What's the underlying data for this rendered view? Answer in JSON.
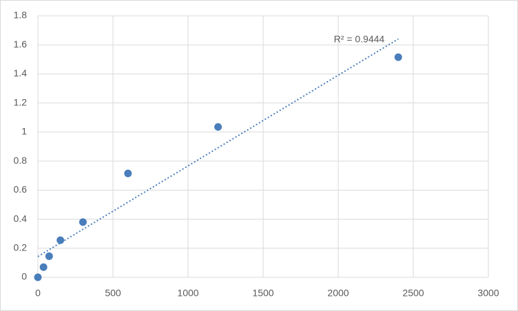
{
  "chart_data": {
    "type": "scatter",
    "x": [
      0,
      37.5,
      75,
      150,
      300,
      600,
      1200,
      2400
    ],
    "values": [
      0,
      0.07,
      0.145,
      0.255,
      0.38,
      0.715,
      1.035,
      1.515
    ],
    "color": "#4a7ebb",
    "trendline": "linear",
    "annotation": "R² = 0.9444",
    "xlim": [
      0,
      3000
    ],
    "xticks": [
      0,
      500,
      1000,
      1500,
      2000,
      2500,
      3000
    ],
    "ylim": [
      0,
      1.8
    ],
    "yticks": [
      0,
      0.2,
      0.4,
      0.6,
      0.8,
      1,
      1.2,
      1.4,
      1.6,
      1.8
    ],
    "grid": true
  }
}
